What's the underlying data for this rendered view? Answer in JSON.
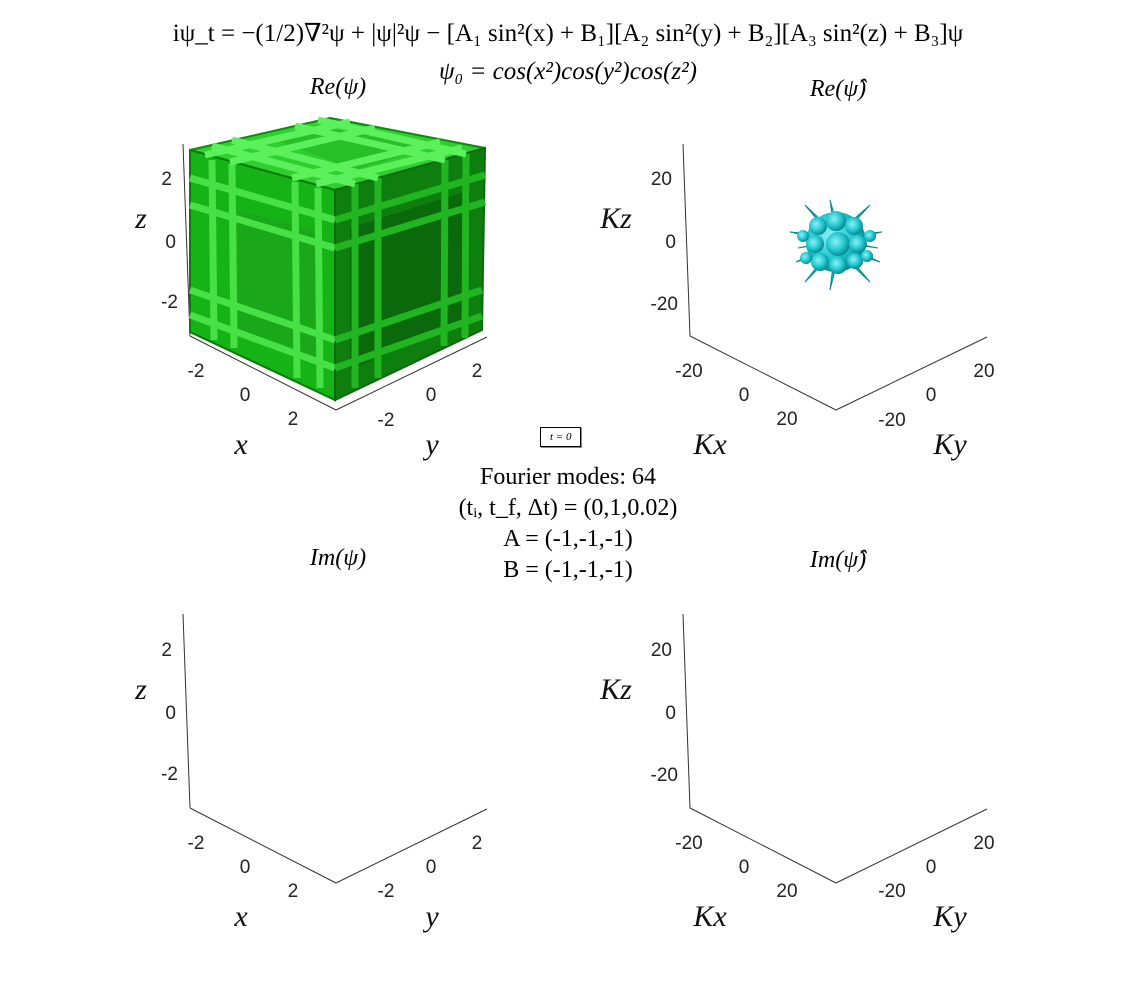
{
  "header": {
    "equation": "iψ_t = −(1/2)∇²ψ + |ψ|²ψ − [A₁ sin²(x) + B₁][A₂ sin²(y) + B₂][A₃ sin²(z) + B₃]ψ",
    "initial_condition": "ψ₀ = cos(x²)cos(y²)cos(z²)"
  },
  "time_label": "t = 0",
  "info": {
    "modes": "Fourier modes: 64",
    "time_range": "(tᵢ, t_f, Δt) = (0,1,0.02)",
    "A": "A = (-1,-1,-1)",
    "B": "B = (-1,-1,-1)"
  },
  "colors": {
    "real_space": "#11bb11",
    "fourier_space": "#22c8d0",
    "axis": "#333333"
  },
  "chart_data": [
    {
      "type": "isosurface-3d",
      "title": "Re(ψ)",
      "xlabel": "x",
      "ylabel": "y",
      "zlabel": "z",
      "x_ticks": [
        "-2",
        "0",
        "2"
      ],
      "y_ticks": [
        "-2",
        "0",
        "2"
      ],
      "z_ticks": [
        "2",
        "0",
        "-2"
      ],
      "xlim": [
        -3.14,
        3.14
      ],
      "ylim": [
        -3.14,
        3.14
      ],
      "zlim": [
        -3.14,
        3.14
      ],
      "surface_color": "green",
      "has_surface": true
    },
    {
      "type": "isosurface-3d",
      "title": "Re(ψ̂)",
      "xlabel": "Kx",
      "ylabel": "Ky",
      "zlabel": "Kz",
      "x_ticks": [
        "-20",
        "0",
        "20"
      ],
      "y_ticks": [
        "-20",
        "0",
        "20"
      ],
      "z_ticks": [
        "20",
        "0",
        "-20"
      ],
      "xlim": [
        -32,
        32
      ],
      "ylim": [
        -32,
        32
      ],
      "zlim": [
        -32,
        32
      ],
      "surface_color": "cyan",
      "has_surface": true
    },
    {
      "type": "isosurface-3d",
      "title": "Im(ψ)",
      "xlabel": "x",
      "ylabel": "y",
      "zlabel": "z",
      "x_ticks": [
        "-2",
        "0",
        "2"
      ],
      "y_ticks": [
        "-2",
        "0",
        "2"
      ],
      "z_ticks": [
        "2",
        "0",
        "-2"
      ],
      "xlim": [
        -3.14,
        3.14
      ],
      "ylim": [
        -3.14,
        3.14
      ],
      "zlim": [
        -3.14,
        3.14
      ],
      "has_surface": false
    },
    {
      "type": "isosurface-3d",
      "title": "Im(ψ̂)",
      "xlabel": "Kx",
      "ylabel": "Ky",
      "zlabel": "Kz",
      "x_ticks": [
        "-20",
        "0",
        "20"
      ],
      "y_ticks": [
        "-20",
        "0",
        "20"
      ],
      "z_ticks": [
        "20",
        "0",
        "-20"
      ],
      "xlim": [
        -32,
        32
      ],
      "ylim": [
        -32,
        32
      ],
      "zlim": [
        -32,
        32
      ],
      "has_surface": false
    }
  ]
}
